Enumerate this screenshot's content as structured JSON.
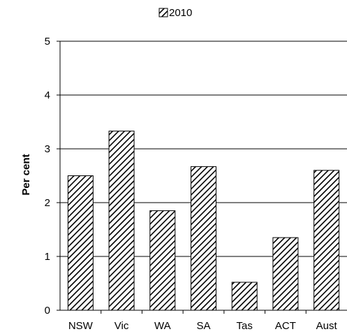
{
  "chart_data": {
    "type": "bar",
    "categories": [
      "NSW",
      "Vic",
      "WA",
      "SA",
      "Tas",
      "ACT",
      "Aust"
    ],
    "series": [
      {
        "name": "2010",
        "values": [
          2.5,
          3.33,
          1.85,
          2.67,
          0.52,
          1.35,
          2.6
        ]
      }
    ],
    "xlabel": "",
    "ylabel": "Per cent",
    "ylim": [
      0,
      5
    ],
    "yticks": [
      "0",
      "1",
      "2",
      "3",
      "4",
      "5"
    ],
    "grid": true,
    "legend_position": "top-center",
    "bar_fill": "diagonal-hatch",
    "colors": {
      "bar_stroke": "#000000",
      "hatch": "#000000",
      "background": "#ffffff",
      "grid": "#000000"
    }
  }
}
